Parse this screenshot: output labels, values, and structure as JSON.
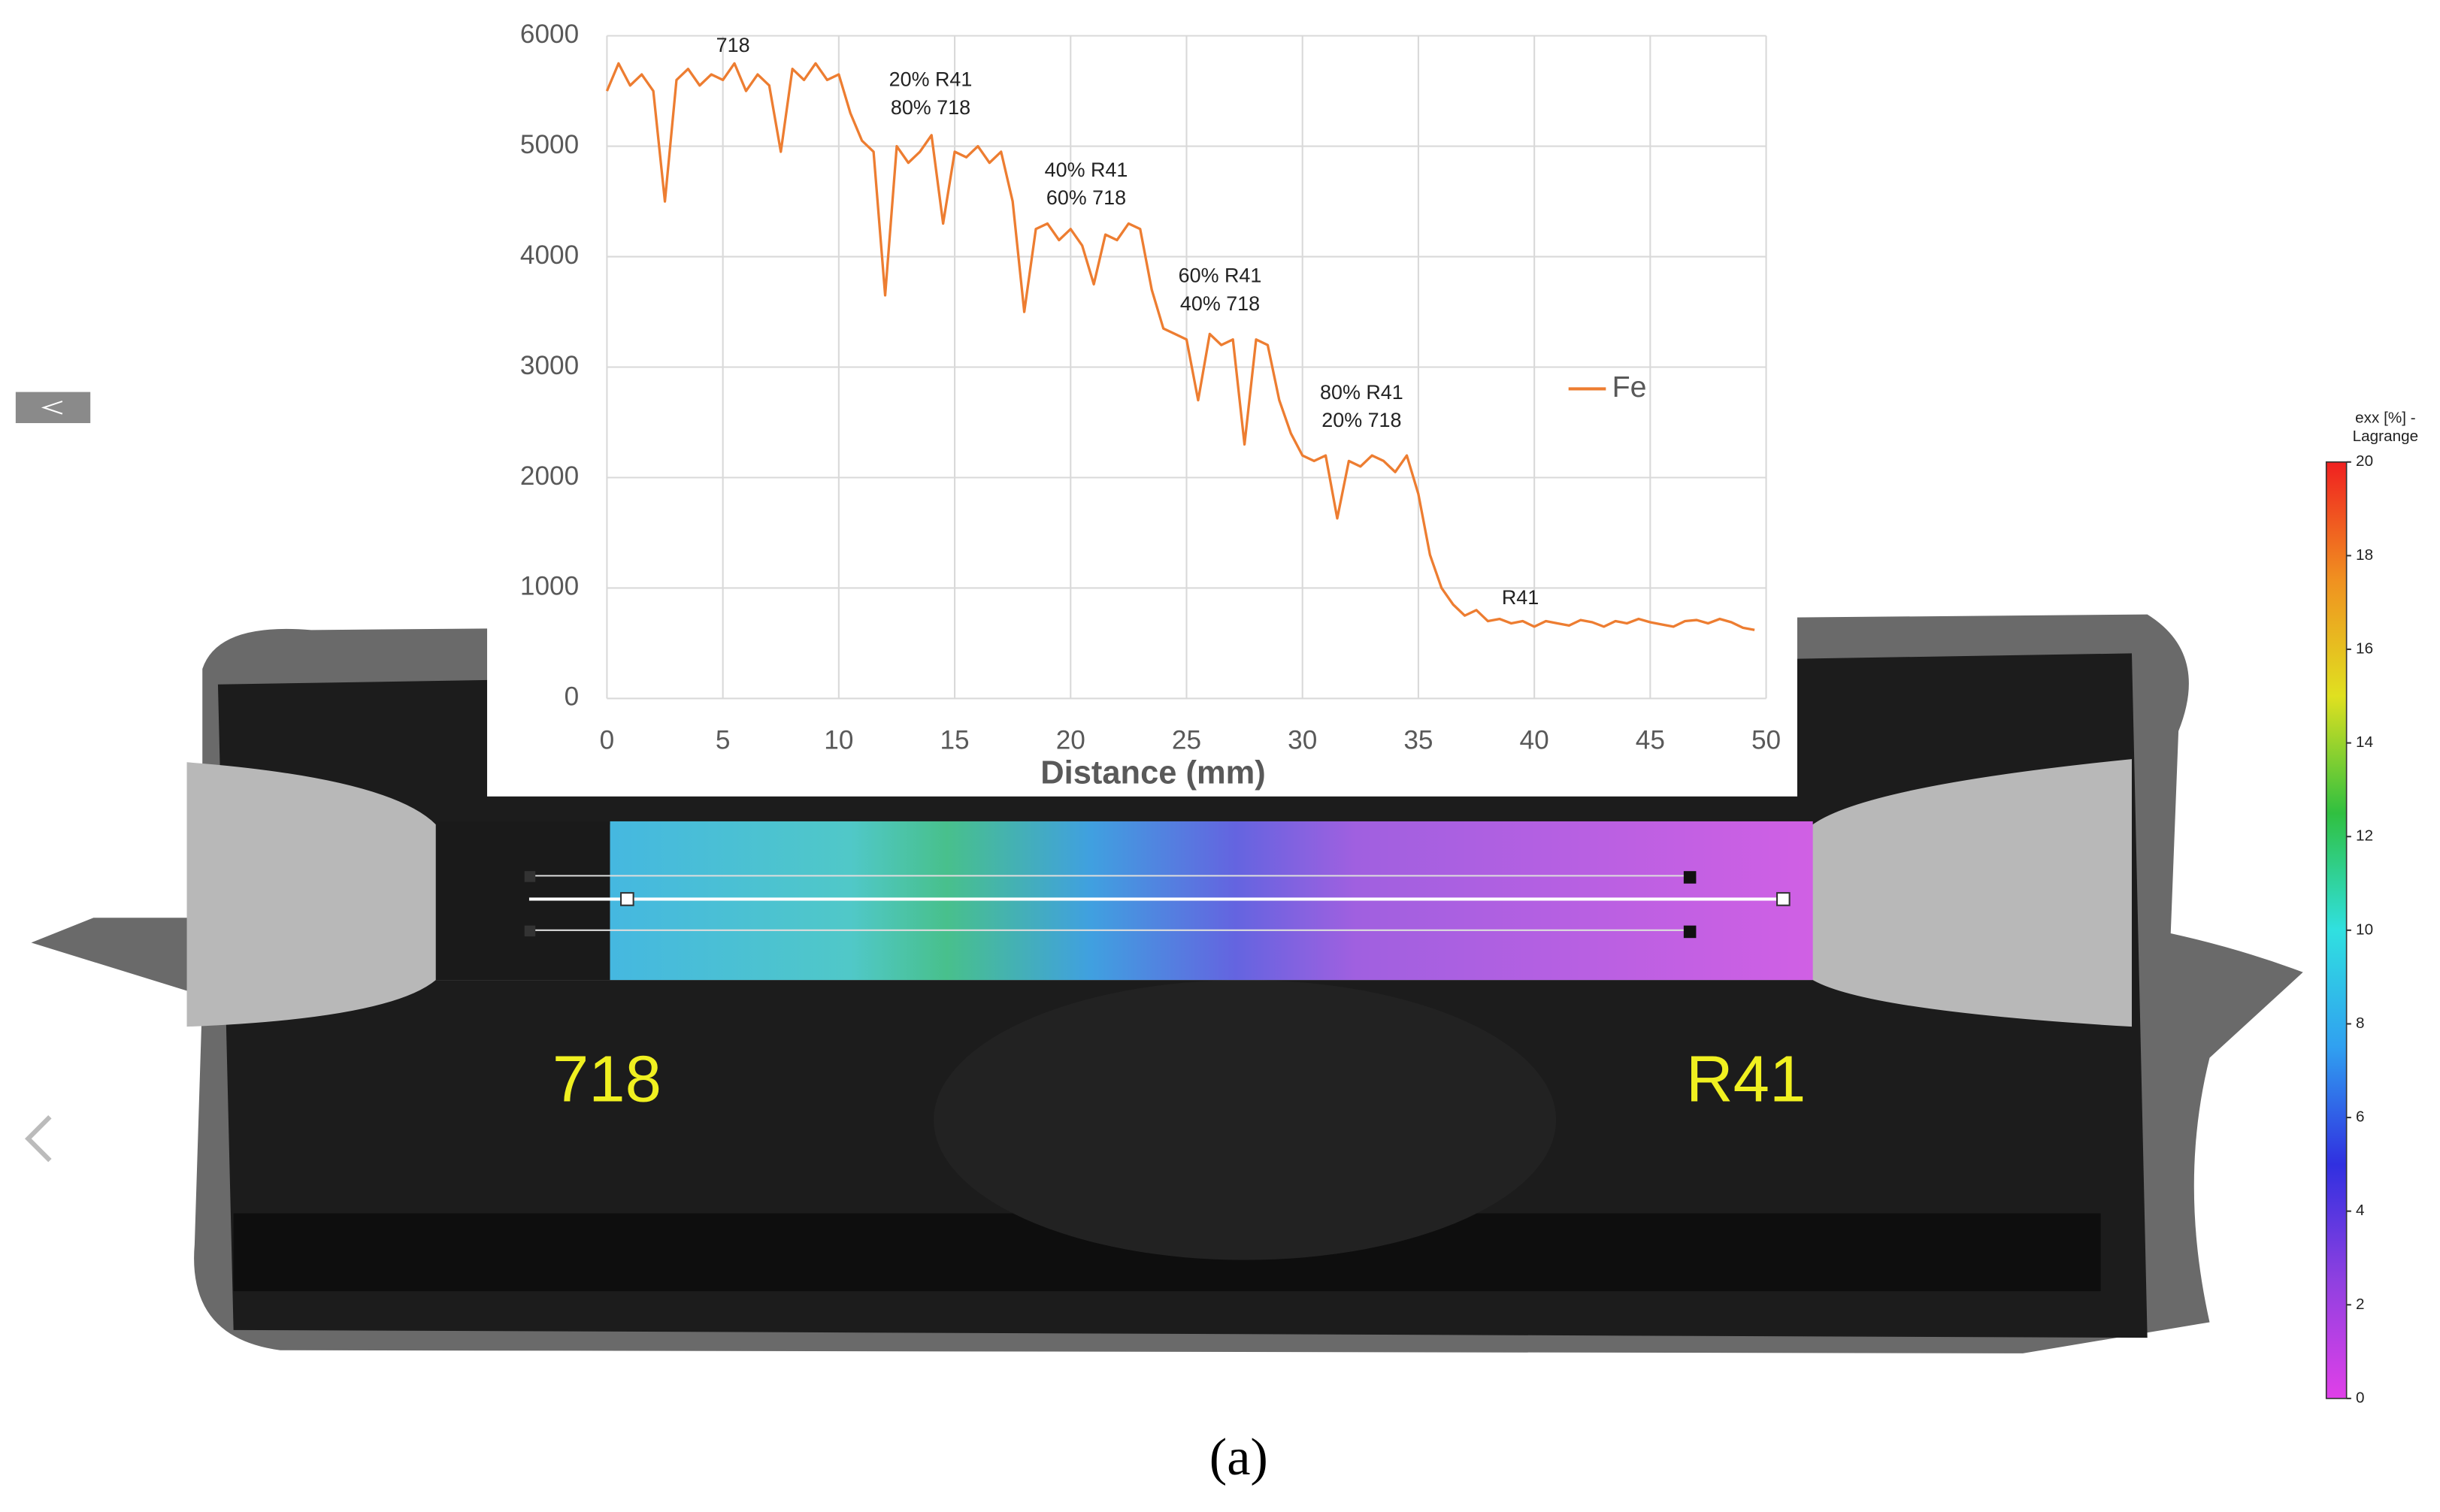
{
  "chart_data": {
    "type": "line",
    "x_label": "Distance (mm)",
    "x": [
      0,
      0.5,
      1,
      1.5,
      2,
      2.5,
      3,
      3.5,
      4,
      4.5,
      5,
      5.5,
      6,
      6.5,
      7,
      7.5,
      8,
      8.5,
      9,
      9.5,
      10,
      10.5,
      11,
      11.5,
      12,
      12.5,
      13,
      13.5,
      14,
      14.5,
      15,
      15.5,
      16,
      16.5,
      17,
      17.5,
      18,
      18.5,
      19,
      19.5,
      20,
      20.5,
      21,
      21.5,
      22,
      22.5,
      23,
      23.5,
      24,
      24.5,
      25,
      25.5,
      26,
      26.5,
      27,
      27.5,
      28,
      28.5,
      29,
      29.5,
      30,
      30.5,
      31,
      31.5,
      32,
      32.5,
      33,
      33.5,
      34,
      34.5,
      35,
      35.5,
      36,
      36.5,
      37,
      37.5,
      38,
      38.5,
      39,
      39.5,
      40,
      40.5,
      41,
      41.5,
      42,
      42.5,
      43,
      43.5,
      44,
      44.5,
      45,
      45.5,
      46,
      46.5,
      47,
      47.5,
      48,
      48.5,
      49,
      49.5
    ],
    "series": [
      {
        "name": "Fe",
        "color": "#ed7d31",
        "values": [
          5500,
          5750,
          5550,
          5650,
          5500,
          4500,
          5600,
          5700,
          5550,
          5650,
          5600,
          5750,
          5500,
          5650,
          5550,
          4950,
          5700,
          5600,
          5750,
          5600,
          5650,
          5300,
          5050,
          4950,
          3650,
          5000,
          4850,
          4950,
          5100,
          4300,
          4950,
          4900,
          5000,
          4850,
          4950,
          4500,
          3500,
          4250,
          4300,
          4150,
          4250,
          4100,
          3750,
          4200,
          4150,
          4300,
          4250,
          3700,
          3350,
          3300,
          3250,
          2700,
          3300,
          3200,
          3250,
          2300,
          3250,
          3200,
          2700,
          2400,
          2200,
          2150,
          2200,
          1630,
          2150,
          2100,
          2200,
          2150,
          2050,
          2200,
          1850,
          1300,
          1000,
          850,
          750,
          800,
          700,
          720,
          680,
          700,
          650,
          700,
          680,
          660,
          710,
          690,
          650,
          700,
          680,
          720,
          690,
          670,
          650,
          700,
          710,
          680,
          720,
          690,
          640,
          620
        ]
      }
    ],
    "xlim": [
      0,
      50
    ],
    "xticks": [
      0,
      5,
      10,
      15,
      20,
      25,
      30,
      35,
      40,
      45,
      50
    ],
    "ylim": [
      0,
      6000
    ],
    "yticks": [
      0,
      1000,
      2000,
      3000,
      4000,
      5000,
      6000
    ],
    "grid": true,
    "legend": "right",
    "annotations": [
      [
        "718"
      ],
      [
        "20% R41",
        "80% 718"
      ],
      [
        "40% R41",
        "60% 718"
      ],
      [
        "60% R41",
        "40% 718"
      ],
      [
        "80% R41",
        "20% 718"
      ],
      [
        "R41"
      ]
    ]
  },
  "colorbar": {
    "title": [
      "exx [%] -",
      "Lagrange"
    ],
    "lim": [
      0,
      20
    ],
    "ticks": [
      0,
      2,
      4,
      6,
      8,
      10,
      12,
      14,
      16,
      18,
      20
    ],
    "colors": [
      "#e040e8",
      "#9040e0",
      "#3030e0",
      "#30a0f0",
      "#30e0e0",
      "#30c040",
      "#e0e020",
      "#f09020",
      "#f02020"
    ]
  },
  "image_labels": [
    "718",
    "R41"
  ],
  "caption": "(a)"
}
